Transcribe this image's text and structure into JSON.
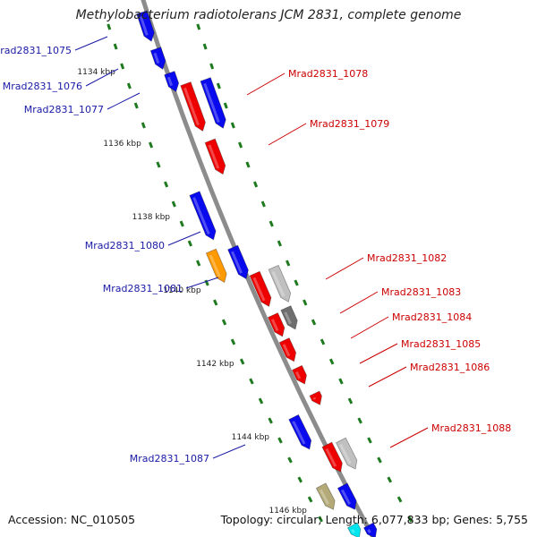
{
  "title": "Methylobacterium radiotolerans JCM 2831, complete genome",
  "accession": "Accession: NC_010505",
  "summary": "Topology: circular; Length: 6,077,833 bp; Genes: 5,755",
  "colors": {
    "backbone": "#8c8c8c",
    "tick": "#1e7a1e",
    "label_left": "#1a1aa6",
    "label_right": "#cc0000",
    "blue": "#0a0aee",
    "red": "#ee0000",
    "orange": "#ff9900",
    "gray_light": "#c0c0c0",
    "gray_dark": "#6e6e6e",
    "olive": "#b3aa77",
    "cyan": "#00e5ee"
  },
  "scale_labels": [
    "1134 kbp",
    "1136 kbp",
    "1138 kbp",
    "1140 kbp",
    "1142 kbp",
    "1144 kbp",
    "1146 kbp"
  ],
  "genes_left": [
    {
      "name": "Mrad2831_1075",
      "color": "blue"
    },
    {
      "name": "Mrad2831_1076",
      "color": "blue"
    },
    {
      "name": "Mrad2831_1077",
      "color": "blue"
    },
    {
      "name": "Mrad2831_1080",
      "color": "blue"
    },
    {
      "name": "Mrad2831_1081",
      "color": "orange"
    },
    {
      "name": "Mrad2831_1087",
      "color": "blue"
    }
  ],
  "genes_right": [
    {
      "name": "Mrad2831_1078",
      "color": "blue"
    },
    {
      "name": "Mrad2831_1079",
      "color": "red"
    },
    {
      "name": "Mrad2831_1082",
      "color": "red"
    },
    {
      "name": "Mrad2831_1083",
      "color": "red"
    },
    {
      "name": "Mrad2831_1084",
      "color": "red"
    },
    {
      "name": "Mrad2831_1085",
      "color": "red"
    },
    {
      "name": "Mrad2831_1086",
      "color": "red"
    },
    {
      "name": "Mrad2831_1088",
      "color": "red"
    }
  ]
}
